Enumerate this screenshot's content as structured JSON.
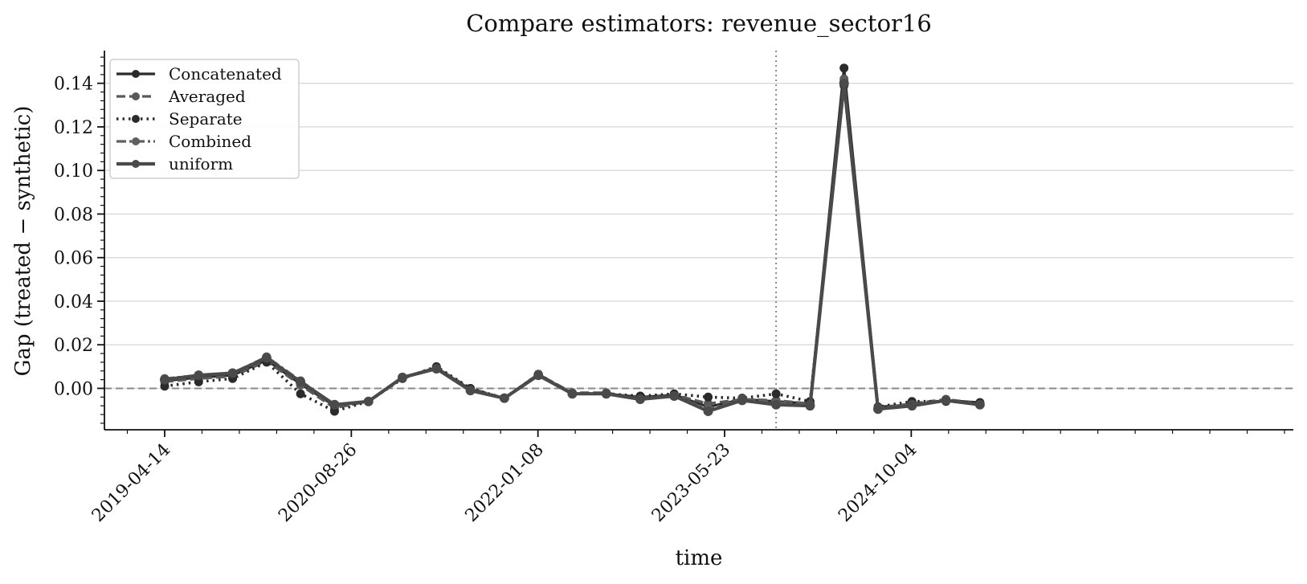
{
  "chart_data": {
    "type": "line",
    "title": "Compare estimators: revenue_sector16",
    "xlabel": "time",
    "ylabel": "Gap (treated − synthetic)",
    "x_ticks": [
      "2019-04-14",
      "2020-08-26",
      "2022-01-08",
      "2023-05-23",
      "2024-10-04"
    ],
    "y_ticks": [
      "0.00",
      "0.02",
      "0.04",
      "0.06",
      "0.08",
      "0.10",
      "0.12",
      "0.14"
    ],
    "ylim": [
      -0.019,
      0.155
    ],
    "x": [
      "2019-04-14",
      "2019-07-14",
      "2019-10-13",
      "2020-01-12",
      "2020-04-12",
      "2020-07-12",
      "2020-10-11",
      "2021-01-10",
      "2021-04-11",
      "2021-07-11",
      "2021-10-10",
      "2022-01-09",
      "2022-04-10",
      "2022-07-10",
      "2022-10-09",
      "2023-01-08",
      "2023-04-09",
      "2023-07-09",
      "2023-10-08",
      "2024-01-07",
      "2024-04-07",
      "2024-07-07",
      "2024-10-06",
      "2025-01-05",
      "2025-04-06"
    ],
    "intervention_date": "2023-10-08",
    "zero_line": 0.0,
    "grid": "y-only",
    "legend_position": "top-left",
    "series": [
      {
        "name": "Concatenated",
        "style": "solid",
        "color": "#2b2b2b",
        "values": [
          0.0035,
          0.005,
          0.006,
          0.013,
          0.002,
          -0.008,
          -0.006,
          0.005,
          0.0095,
          -0.0005,
          -0.0045,
          0.0065,
          -0.0025,
          -0.0025,
          -0.004,
          -0.003,
          -0.0085,
          -0.005,
          -0.006,
          -0.007,
          0.147,
          -0.0085,
          -0.0075,
          -0.0055,
          -0.0065
        ]
      },
      {
        "name": "Averaged",
        "style": "dashed",
        "color": "#595959",
        "values": [
          0.003,
          0.0045,
          0.0055,
          0.0125,
          0.0015,
          -0.009,
          -0.006,
          0.005,
          0.0095,
          0.0,
          -0.0045,
          0.0065,
          -0.002,
          -0.002,
          -0.0045,
          -0.003,
          -0.007,
          -0.005,
          -0.0055,
          -0.007,
          0.142,
          -0.009,
          -0.007,
          -0.005,
          -0.007
        ]
      },
      {
        "name": "Separate",
        "style": "dotted",
        "color": "#2b2b2b",
        "values": [
          0.001,
          0.003,
          0.0045,
          0.012,
          -0.0025,
          -0.0105,
          -0.006,
          0.0045,
          0.01,
          0.0,
          -0.0045,
          0.0065,
          -0.0025,
          -0.0025,
          -0.0035,
          -0.0025,
          -0.004,
          -0.0045,
          -0.0025,
          -0.006,
          0.139,
          -0.0085,
          -0.006,
          -0.006,
          -0.0065
        ]
      },
      {
        "name": "Combined",
        "style": "dashdot",
        "color": "#5f5f5f",
        "values": [
          0.0045,
          0.006,
          0.007,
          0.0145,
          0.0035,
          -0.0075,
          -0.006,
          0.005,
          0.009,
          -0.001,
          -0.0045,
          0.0065,
          -0.0025,
          -0.0025,
          -0.005,
          -0.0035,
          -0.0095,
          -0.005,
          -0.0065,
          -0.0075,
          0.141,
          -0.009,
          -0.0075,
          -0.0055,
          -0.0075
        ]
      },
      {
        "name": "uniform",
        "style": "solid-thick",
        "color": "#4a4a4a",
        "values": [
          0.004,
          0.006,
          0.007,
          0.014,
          0.003,
          -0.0075,
          -0.006,
          0.005,
          0.009,
          -0.001,
          -0.0045,
          0.006,
          -0.0025,
          -0.0025,
          -0.005,
          -0.0035,
          -0.0105,
          -0.0055,
          -0.0075,
          -0.008,
          0.14,
          -0.0095,
          -0.008,
          -0.0055,
          -0.0075
        ]
      }
    ]
  }
}
